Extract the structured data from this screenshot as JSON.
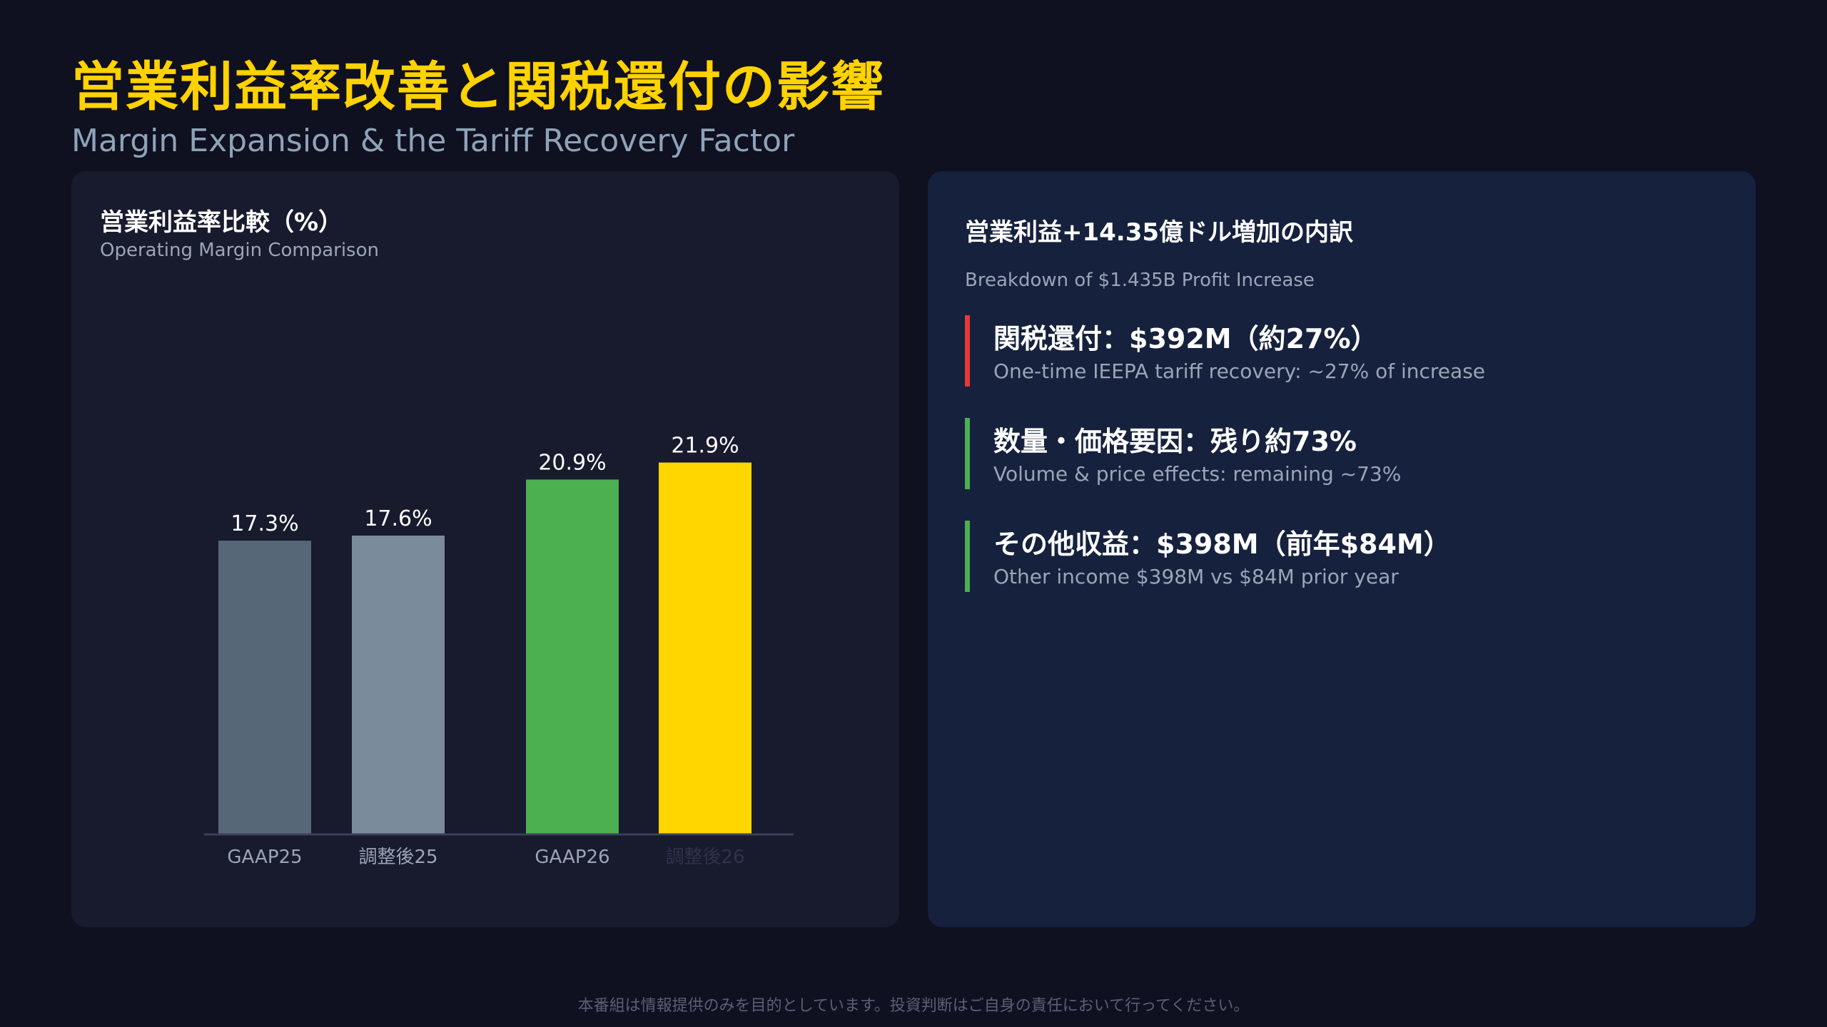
{
  "header": {
    "title": "営業利益率改善と関税還付の影響",
    "subtitle": "Margin Expansion & the Tariff Recovery Factor"
  },
  "left_panel": {
    "title": "営業利益率比較（%）",
    "subtitle": "Operating Margin Comparison"
  },
  "chart_data": {
    "type": "bar",
    "categories": [
      "GAAP25",
      "調整後25",
      "GAAP26",
      "調整後26"
    ],
    "values": [
      17.3,
      17.6,
      20.9,
      21.9
    ],
    "data_labels": [
      "17.3%",
      "17.6%",
      "20.9%",
      "21.9%"
    ],
    "colors": [
      "#566878",
      "#7a8c9c",
      "#4caf50",
      "#ffd600"
    ],
    "category_label_colors": [
      "#9aa6b6",
      "#9aa6b6",
      "#9aa6b6",
      "#30344a"
    ],
    "title": "営業利益率比較（%）",
    "xlabel": "",
    "ylabel": "",
    "ylim": [
      0,
      23.1
    ],
    "grid": false
  },
  "right_panel": {
    "title": "営業利益+14.35億ドル増加の内訳",
    "subtitle": "Breakdown of $1.435B Profit Increase",
    "items": [
      {
        "heading": "関税還付：$392M（約27%）",
        "description": "One-time IEEPA tariff recovery: ~27% of increase",
        "accent": "#e53935"
      },
      {
        "heading": "数量・価格要因：残り約73%",
        "description": "Volume & price effects: remaining ~73%",
        "accent": "#4caf50"
      },
      {
        "heading": "その他収益：$398M（前年$84M）",
        "description": "Other income $398M vs $84M prior year",
        "accent": "#4caf50"
      }
    ]
  },
  "footer": {
    "disclaimer": "本番組は情報提供のみを目的としています。投資判断はご自身の責任において行ってください。"
  }
}
